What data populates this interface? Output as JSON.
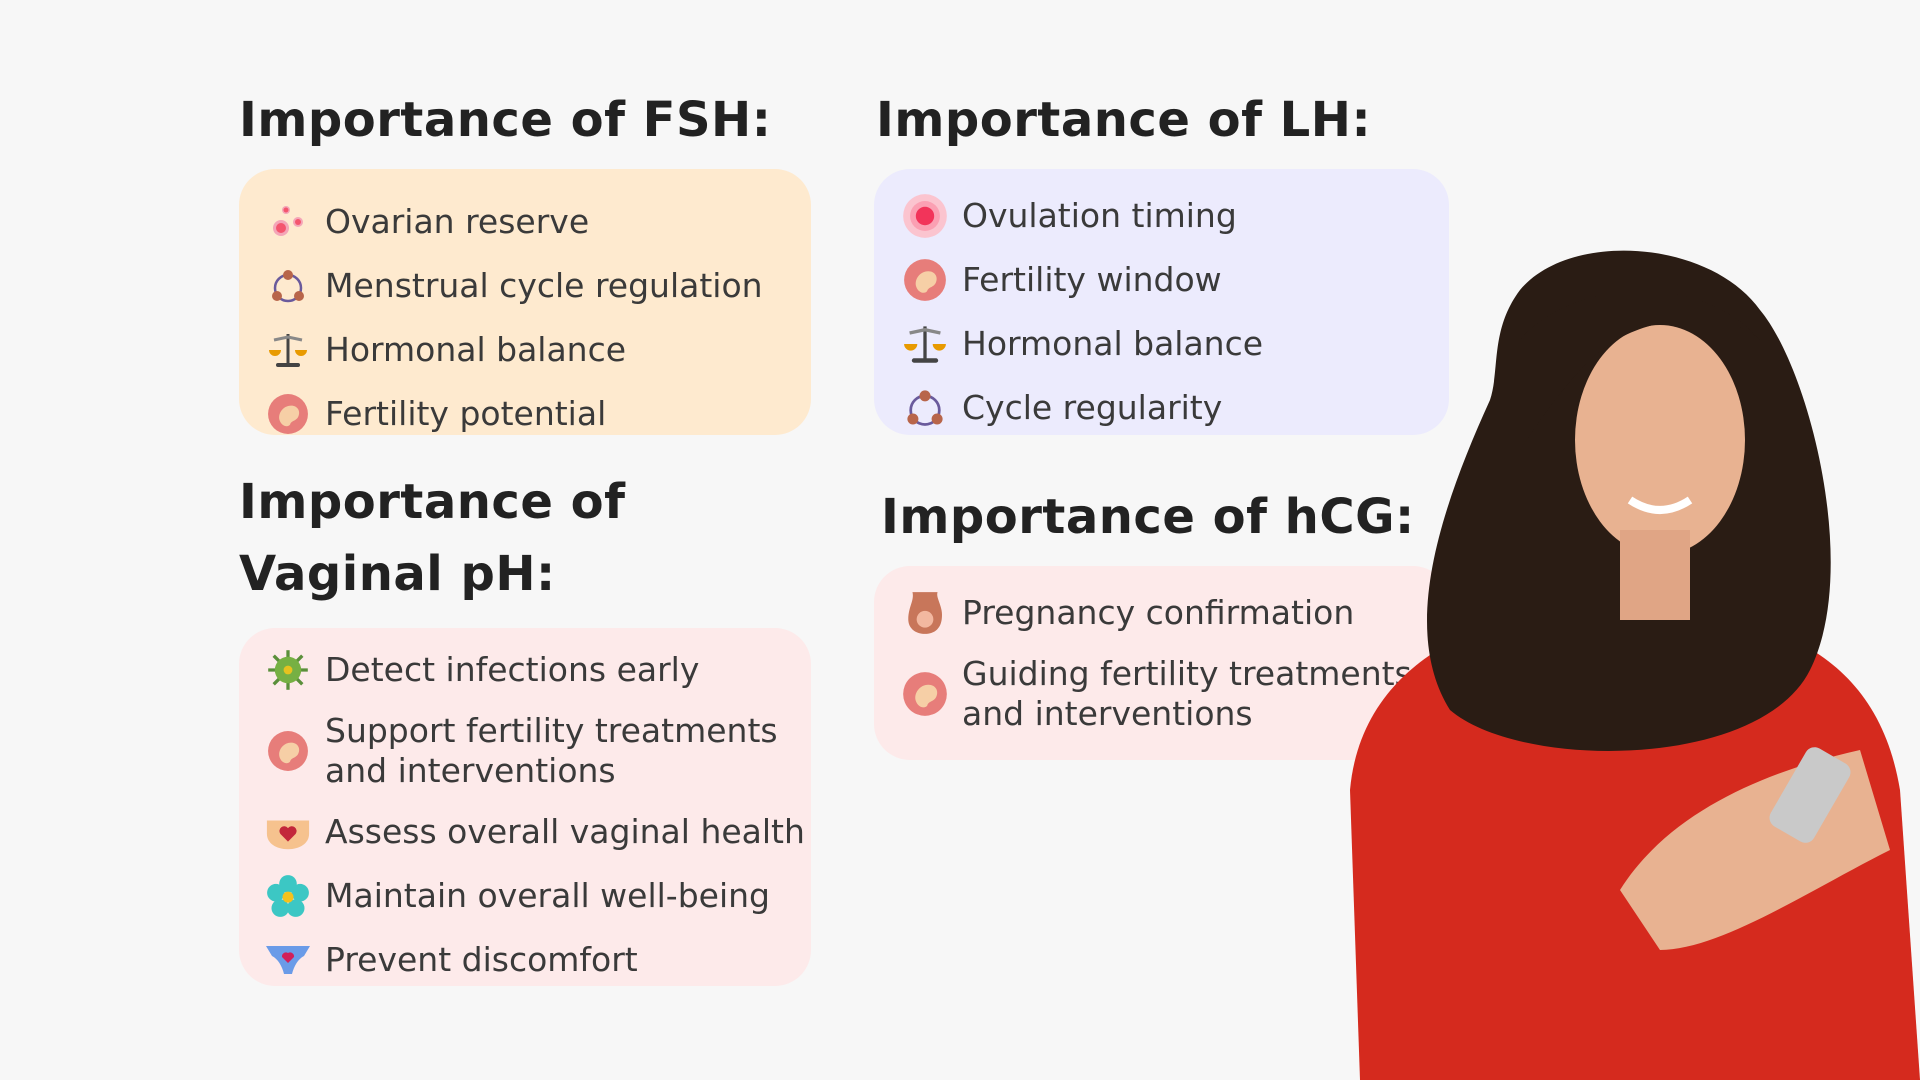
{
  "fsh": {
    "title": "Importance of FSH:",
    "color": "#feeacf",
    "items": [
      {
        "icon": "ovary-cells-icon",
        "label": "Ovarian reserve"
      },
      {
        "icon": "cycle-icon",
        "label": "Menstrual cycle regulation"
      },
      {
        "icon": "balance-scale-icon",
        "label": "Hormonal balance"
      },
      {
        "icon": "fetus-icon",
        "label": "Fertility potential"
      }
    ]
  },
  "lh": {
    "title": "Importance of LH:",
    "color": "#ecebfd",
    "items": [
      {
        "icon": "egg-cell-icon",
        "label": "Ovulation timing"
      },
      {
        "icon": "fetus-icon",
        "label": "Fertility window"
      },
      {
        "icon": "balance-scale-icon",
        "label": "Hormonal balance"
      },
      {
        "icon": "cycle-icon",
        "label": "Cycle regularity"
      }
    ]
  },
  "ph": {
    "title_line1": "Importance of",
    "title_line2": "Vaginal pH:",
    "color": "#fdeaea",
    "items": [
      {
        "icon": "virus-icon",
        "label": "Detect infections early"
      },
      {
        "icon": "fetus-icon",
        "label": "Support fertility treatments and interventions"
      },
      {
        "icon": "heart-health-icon",
        "label": "Assess overall vaginal health"
      },
      {
        "icon": "flower-icon",
        "label": "Maintain overall well-being"
      },
      {
        "icon": "underwear-heart-icon",
        "label": "Prevent discomfort"
      }
    ]
  },
  "hcg": {
    "title": "Importance of hCG:",
    "color": "#fdeaea",
    "items": [
      {
        "icon": "pregnancy-icon",
        "label": "Pregnancy confirmation"
      },
      {
        "icon": "fetus-icon",
        "label": "Guiding fertility treatments and interventions"
      }
    ]
  }
}
